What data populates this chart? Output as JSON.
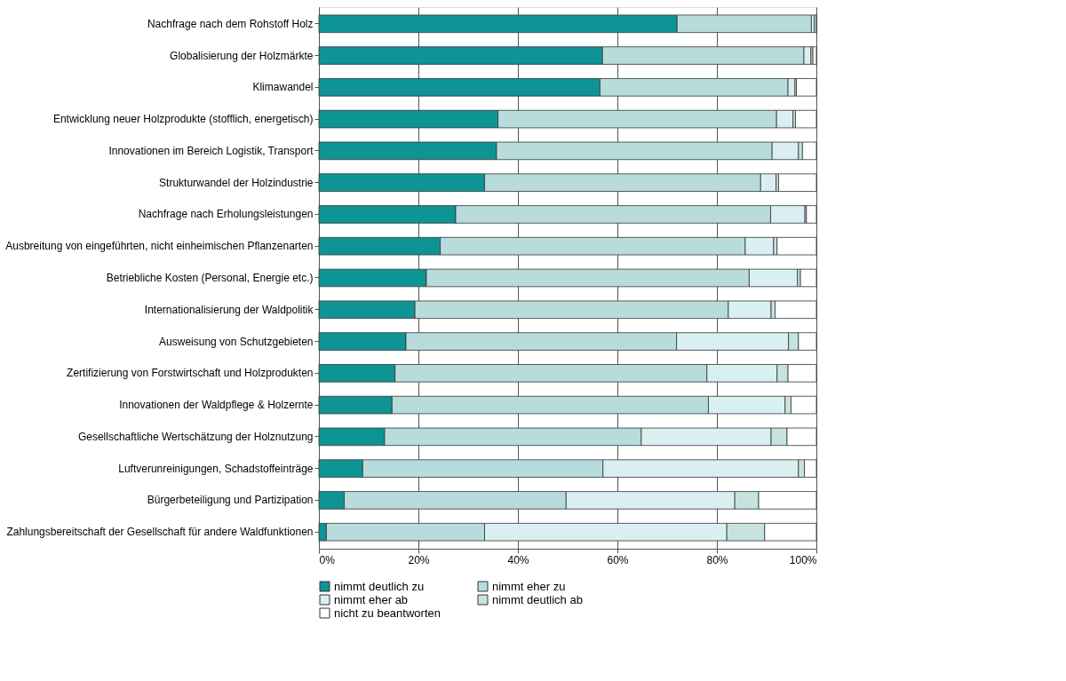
{
  "chart_data": {
    "type": "bar",
    "orientation": "horizontal",
    "stacked": true,
    "categories": [
      "Nachfrage nach dem Rohstoff Holz",
      "Globalisierung der Holzmärkte",
      "Klimawandel",
      "Entwicklung neuer Holzprodukte (stofflich, energetisch)",
      "Innovationen im Bereich Logistik, Transport",
      "Strukturwandel der Holzindustrie",
      "Nachfrage nach Erholungsleistungen",
      "Ausbreitung von eingeführten, nicht einheimischen Pflanzenarten",
      "Betriebliche Kosten (Personal, Energie etc.)",
      "Internationalisierung der Waldpolitik",
      "Ausweisung von Schutzgebieten",
      "Zertifizierung von Forstwirtschaft und Holzprodukten",
      "Innovationen der Waldpflege & Holzernte",
      "Gesellschaftliche Wertschätzung der Holznutzung",
      "Luftverunreinigungen, Schadstoffeinträge",
      "Bürgerbeteiligung und Partizipation",
      "Zahlungsbereitschaft der Gesellschaft für andere Waldfunktionen"
    ],
    "series": [
      {
        "name": "nimmt deutlich zu",
        "color": "#0e9494",
        "values": [
          72,
          57,
          56.5,
          36,
          35.7,
          33.3,
          27.5,
          24.4,
          21.6,
          19.3,
          17.5,
          15.3,
          14.7,
          13.2,
          8.8,
          5.1,
          1.5
        ]
      },
      {
        "name": "nimmt eher zu",
        "color": "#b8dcdc",
        "values": [
          27,
          40.5,
          37.8,
          56,
          55.4,
          55.5,
          63.3,
          61.3,
          64.9,
          63,
          54.4,
          62.7,
          63.6,
          51.6,
          48.3,
          44.6,
          31.8
        ]
      },
      {
        "name": "nimmt eher ab",
        "color": "#daeff1",
        "values": [
          0.6,
          1.4,
          1.4,
          3.3,
          5.3,
          3.1,
          6.9,
          5.7,
          9.7,
          8.6,
          22.5,
          14.1,
          15.4,
          26.1,
          39.3,
          33.9,
          48.7
        ]
      },
      {
        "name": "nimmt deutlich ab",
        "color": "#c6e3e1",
        "values": [
          0.4,
          0.4,
          0.3,
          0.5,
          0.8,
          0.5,
          0.3,
          0.7,
          0.6,
          0.8,
          2,
          2.2,
          1.2,
          3.2,
          1.2,
          4.8,
          7.6
        ]
      },
      {
        "name": "nicht zu beantworten",
        "color": "#ffffff",
        "values": [
          null,
          0.7,
          4,
          4.2,
          2.8,
          7.6,
          2,
          7.9,
          3.2,
          8.3,
          3.6,
          5.7,
          5.1,
          5.9,
          2.4,
          11.6,
          10.4
        ]
      }
    ],
    "xlim": [
      0,
      100
    ],
    "xticks": [
      {
        "value": 0,
        "label": "0%"
      },
      {
        "value": 20,
        "label": "20%"
      },
      {
        "value": 40,
        "label": "40%"
      },
      {
        "value": 60,
        "label": "60%"
      },
      {
        "value": 80,
        "label": "80%"
      },
      {
        "value": 100,
        "label": "100%"
      }
    ],
    "grid": "x",
    "legend": "bottom"
  }
}
